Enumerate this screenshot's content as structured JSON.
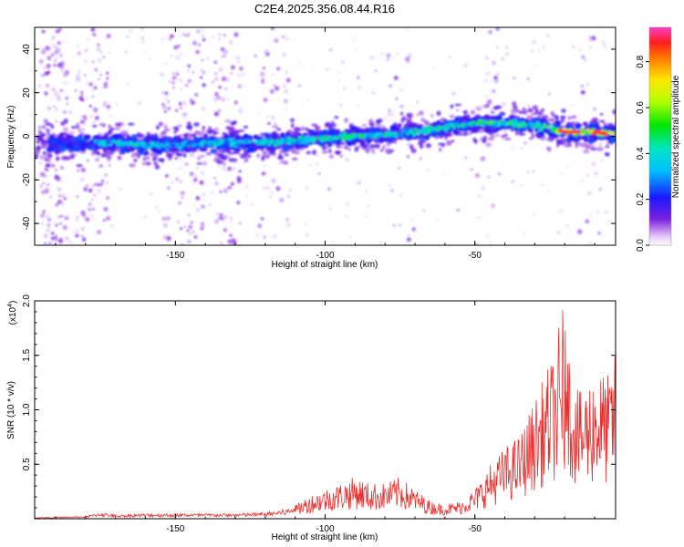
{
  "title": "C2E4.2025.356.08.44.R16",
  "chart_data": [
    {
      "type": "heatmap",
      "title": "C2E4.2025.356.08.44.R16",
      "xlabel": "Height of straight line (km)",
      "ylabel": "Frequency (Hz)",
      "xlim": [
        -197,
        -3
      ],
      "ylim": [
        -50,
        50
      ],
      "x_ticks": [
        -150,
        -100,
        -50
      ],
      "x_tick_labels": [
        "-150",
        "-100",
        "-50"
      ],
      "y_ticks": [
        -40,
        -20,
        0,
        20,
        40
      ],
      "y_tick_labels": [
        "-40",
        "-20",
        "0",
        "20",
        "40"
      ],
      "colorbar": {
        "label": "Normalized spectral amplitude",
        "range": [
          0.0,
          0.95
        ],
        "ticks": [
          0.0,
          0.2,
          0.4,
          0.6,
          0.8
        ],
        "tick_labels": [
          "0.0",
          "0.2",
          "0.4",
          "0.6",
          "0.8"
        ]
      },
      "ridge": {
        "x": [
          -195,
          -180,
          -170,
          -160,
          -150,
          -140,
          -130,
          -120,
          -110,
          -100,
          -90,
          -80,
          -70,
          -60,
          -50,
          -40,
          -30,
          -20,
          -10,
          -5
        ],
        "frequency": [
          -3,
          -3,
          -3,
          -4,
          -4,
          -3,
          -3,
          -3,
          -2,
          -1,
          0,
          1,
          2,
          4,
          6,
          6,
          5,
          2,
          2,
          1
        ],
        "amplitude": [
          0.25,
          0.35,
          0.45,
          0.4,
          0.35,
          0.4,
          0.4,
          0.45,
          0.45,
          0.5,
          0.5,
          0.45,
          0.45,
          0.45,
          0.5,
          0.55,
          0.5,
          0.7,
          0.85,
          0.75
        ]
      }
    },
    {
      "type": "line",
      "xlabel": "Height of straight line (km)",
      "ylabel": "SNR (10 * v/v)",
      "y_multiplier": "(x10",
      "y_multiplier_exp": "4",
      "y_multiplier_close": ")",
      "xlim": [
        -197,
        -3
      ],
      "ylim": [
        0,
        2.0
      ],
      "x_ticks": [
        -150,
        -100,
        -50
      ],
      "x_tick_labels": [
        "-150",
        "-100",
        "-50"
      ],
      "y_ticks": [
        0.5,
        1.0,
        1.5,
        2.0
      ],
      "y_tick_labels": [
        "0.5",
        "1.0",
        "1.5",
        "2.0"
      ],
      "color": "#e8302f",
      "envelope": {
        "x": [
          -197,
          -180,
          -175,
          -170,
          -160,
          -150,
          -140,
          -130,
          -120,
          -112,
          -105,
          -100,
          -95,
          -90,
          -85,
          -80,
          -75,
          -70,
          -65,
          -60,
          -55,
          -50,
          -45,
          -40,
          -35,
          -30,
          -25,
          -22,
          -20,
          -15,
          -10,
          -5,
          -3
        ],
        "snr": [
          0.01,
          0.02,
          0.05,
          0.03,
          0.04,
          0.04,
          0.04,
          0.04,
          0.05,
          0.08,
          0.2,
          0.25,
          0.3,
          0.35,
          0.3,
          0.3,
          0.35,
          0.25,
          0.15,
          0.12,
          0.15,
          0.25,
          0.45,
          0.6,
          0.7,
          1.0,
          1.3,
          1.4,
          1.6,
          1.05,
          1.25,
          1.2,
          1.4
        ]
      }
    }
  ]
}
